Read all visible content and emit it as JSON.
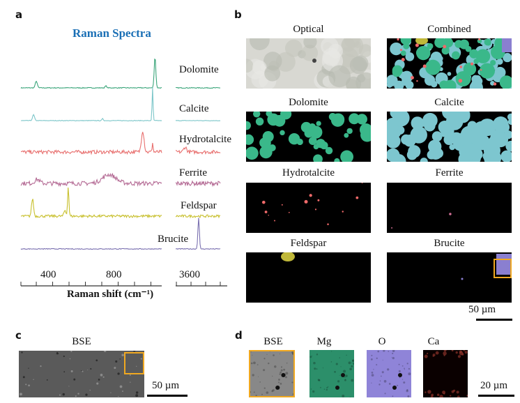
{
  "panels": {
    "a": "a",
    "b": "b",
    "c": "c",
    "d": "d"
  },
  "chart_data": {
    "type": "line",
    "title": "Raman Spectra",
    "xlabel": "Raman shift (cm⁻¹)",
    "ylabel": "",
    "xlim_left": [
      221,
      1081
    ],
    "xlim_right": [
      3495,
      3800
    ],
    "xticks_labeled": [
      "400",
      "800",
      "3600"
    ],
    "series": [
      {
        "name": "Dolomite",
        "color": "#3aa57a",
        "noise": 0.04,
        "peaks": [
          [
            315,
            0.35,
            6
          ],
          [
            740,
            0.1,
            5
          ],
          [
            1040,
            1.6,
            5
          ]
        ]
      },
      {
        "name": "Calcite",
        "color": "#7cc6c9",
        "noise": 0.03,
        "peaks": [
          [
            298,
            0.3,
            6
          ],
          [
            720,
            0.1,
            4
          ],
          [
            1025,
            1.7,
            3
          ]
        ]
      },
      {
        "name": "Hydrotalcite",
        "color": "#e8706f",
        "noise": 0.18,
        "peaks": [
          [
            965,
            1.1,
            8
          ],
          [
            1025,
            0.5,
            3
          ],
          [
            3560,
            0.25,
            10
          ]
        ]
      },
      {
        "name": "Ferrite",
        "color": "#b46a94",
        "noise": 0.22,
        "peaks": [
          [
            760,
            0.45,
            40
          ],
          [
            320,
            0.2,
            15
          ]
        ]
      },
      {
        "name": "Feldspar",
        "color": "#c8c02e",
        "noise": 0.13,
        "peaks": [
          [
            292,
            0.9,
            6
          ],
          [
            490,
            0.3,
            6
          ],
          [
            510,
            1.5,
            4
          ]
        ]
      },
      {
        "name": "Brucite",
        "color": "#7a70b0",
        "noise": 0.04,
        "peaks": [
          [
            3652,
            1.6,
            5
          ]
        ]
      }
    ]
  },
  "maps": [
    {
      "title": "Optical",
      "kind": "optical"
    },
    {
      "title": "Combined",
      "kind": "combined"
    },
    {
      "title": "Dolomite",
      "kind": "blobs",
      "color": "#3ab88a",
      "density": 0.35
    },
    {
      "title": "Calcite",
      "kind": "blobs",
      "color": "#7dc6cf",
      "density": 0.6
    },
    {
      "title": "Hydrotalcite",
      "kind": "dots",
      "color": "#f06a6a",
      "density": 0.12
    },
    {
      "title": "Ferrite",
      "kind": "dots",
      "color": "#d06f95",
      "density": 0.015
    },
    {
      "title": "Feldspar",
      "kind": "feldspar",
      "color": "#c0b83a"
    },
    {
      "title": "Brucite",
      "kind": "brucite",
      "color": "#8a7fd0"
    }
  ],
  "scale_b": "50 µm",
  "panel_c": {
    "title": "BSE",
    "scale": "50 µm"
  },
  "panel_d": {
    "titles": [
      "BSE",
      "Mg",
      "O",
      "Ca"
    ],
    "colors": [
      "#888888",
      "#2c8f6a",
      "#8f84d8",
      "#a03a30"
    ],
    "scale": "20 µm"
  },
  "highlight_color": "#f0a820"
}
